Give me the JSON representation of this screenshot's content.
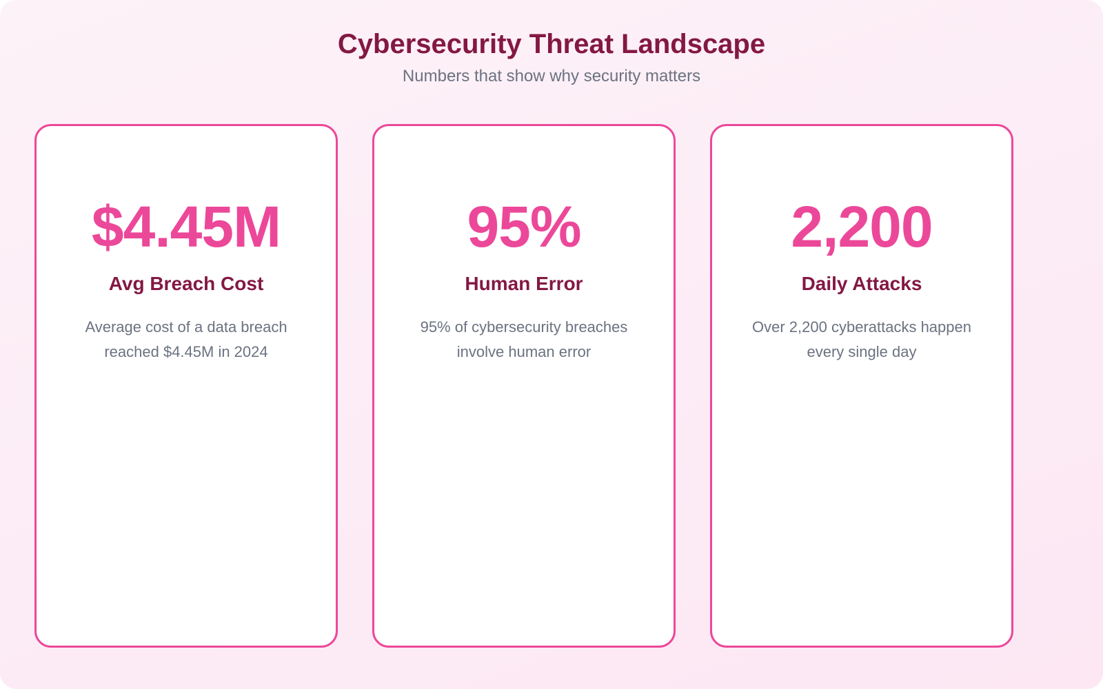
{
  "header": {
    "title": "Cybersecurity Threat Landscape",
    "subtitle": "Numbers that show why security matters"
  },
  "colors": {
    "accent": "#ec4899",
    "heading": "#831843",
    "muted": "#6b7280"
  },
  "cards": [
    {
      "value": "$4.45M",
      "label": "Avg Breach Cost",
      "description": "Average cost of a data breach reached $4.45M in 2024"
    },
    {
      "value": "95%",
      "label": "Human Error",
      "description": "95% of cybersecurity breaches involve human error"
    },
    {
      "value": "2,200",
      "label": "Daily Attacks",
      "description": "Over 2,200 cyberattacks happen every single day"
    }
  ]
}
